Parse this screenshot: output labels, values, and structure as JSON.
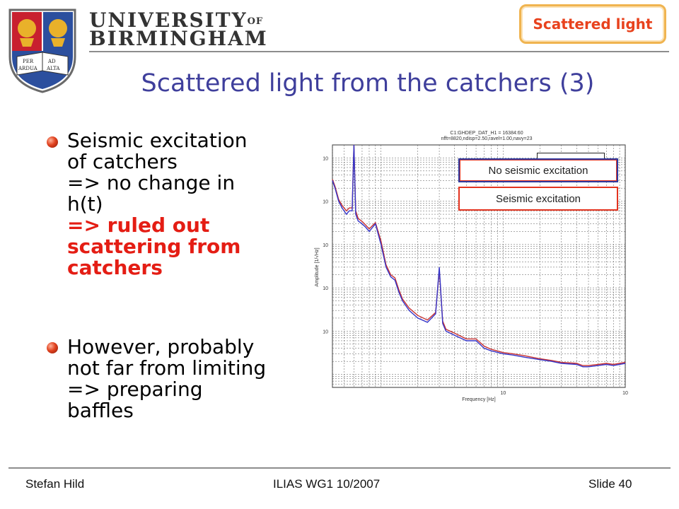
{
  "header": {
    "university_line1": "UNIVERSITY",
    "university_of": "OF",
    "university_line2": "BIRMINGHAM",
    "crest_motto_left_top": "PER",
    "crest_motto_left_bottom": "ARDUA",
    "crest_motto_right_top": "AD",
    "crest_motto_right_bottom": "ALTA",
    "section_tag": "Scattered light"
  },
  "slide": {
    "title": "Scattered light from the catchers (3)",
    "bullets": [
      {
        "lines": [
          "Seismic excitation",
          "of catchers",
          "=> no change in",
          "h(t)"
        ],
        "emphasis": [
          "=> ruled out",
          "scattering from",
          "catchers"
        ]
      },
      {
        "lines": [
          "However, probably",
          "not far from limiting",
          "=> preparing",
          "baffles"
        ]
      }
    ]
  },
  "chart": {
    "header_line1": "C1:GHDEP_DAT_H1 = 16384:60",
    "header_line2": "nfft=8820,ndisp=2.50,ravel=1.00,navy=23",
    "callout_no": "No seismic excitation",
    "callout_yes": "Seismic excitation",
    "colors": {
      "no_seismic": "#3434c8",
      "seismic": "#c83232"
    }
  },
  "chart_data": {
    "type": "line",
    "xlabel": "Frequency [Hz]",
    "ylabel": "Amplitude [1/√Hz]",
    "x_scale": "log",
    "y_scale": "log",
    "xlim": [
      40,
      10000
    ],
    "x_ticks": [
      "10",
      "10"
    ],
    "y_ticks": [
      "10",
      "10",
      "10",
      "10",
      "10"
    ],
    "grid": true,
    "legend": "top-right",
    "series": [
      {
        "name": "No seismic excitation",
        "color": "#3434c8",
        "x": [
          40,
          42,
          45,
          48,
          52,
          55,
          58,
          60,
          62,
          65,
          70,
          75,
          80,
          90,
          100,
          110,
          120,
          130,
          140,
          150,
          170,
          200,
          240,
          280,
          300,
          320,
          340,
          400,
          500,
          600,
          700,
          800,
          1000,
          1200,
          1500,
          2000,
          2500,
          3000,
          4000,
          4500,
          5000,
          6000,
          7000,
          8000,
          10000
        ],
        "y": [
          3e-18,
          2e-18,
          1e-18,
          7e-19,
          5e-19,
          6e-19,
          6e-19,
          3e-17,
          5e-19,
          3.5e-19,
          3e-19,
          2.5e-19,
          2e-19,
          3e-19,
          1e-19,
          3e-20,
          1.8e-20,
          1.5e-20,
          8e-21,
          5e-21,
          3e-21,
          2e-21,
          1.6e-21,
          2.5e-21,
          3e-20,
          1.5e-21,
          1e-21,
          8e-22,
          6e-22,
          6e-22,
          4e-22,
          3.5e-22,
          3e-22,
          2.8e-22,
          2.5e-22,
          2.2e-22,
          2e-22,
          1.8e-22,
          1.7e-22,
          1.5e-22,
          1.5e-22,
          1.6e-22,
          1.7e-22,
          1.6e-22,
          1.8e-22
        ]
      },
      {
        "name": "Seismic excitation",
        "color": "#c83232",
        "x": [
          40,
          42,
          45,
          48,
          52,
          55,
          58,
          60,
          62,
          65,
          70,
          75,
          80,
          90,
          100,
          110,
          120,
          130,
          140,
          150,
          170,
          200,
          240,
          280,
          300,
          320,
          340,
          400,
          500,
          600,
          700,
          800,
          1000,
          1200,
          1500,
          2000,
          2500,
          3000,
          4000,
          4500,
          5000,
          6000,
          7000,
          8000,
          10000
        ],
        "y": [
          3.2e-18,
          2.2e-18,
          1.1e-18,
          8e-19,
          6e-19,
          7e-19,
          7e-19,
          2.5e-17,
          6e-19,
          4e-19,
          3.4e-19,
          2.8e-19,
          2.3e-19,
          3.2e-19,
          1.2e-19,
          3.4e-20,
          2e-20,
          1.7e-20,
          9e-21,
          5.5e-21,
          3.4e-21,
          2.3e-21,
          1.8e-21,
          2.7e-21,
          2.6e-20,
          1.7e-21,
          1.1e-21,
          9e-22,
          6.6e-22,
          6.6e-22,
          4.5e-22,
          3.8e-22,
          3.2e-22,
          3e-22,
          2.7e-22,
          2.3e-22,
          2.1e-22,
          1.9e-22,
          1.8e-22,
          1.6e-22,
          1.6e-22,
          1.7e-22,
          1.8e-22,
          1.7e-22,
          1.9e-22
        ]
      }
    ]
  },
  "footer": {
    "author": "Stefan Hild",
    "event": "ILIAS WG1 10/2007",
    "slide": "Slide 40"
  }
}
